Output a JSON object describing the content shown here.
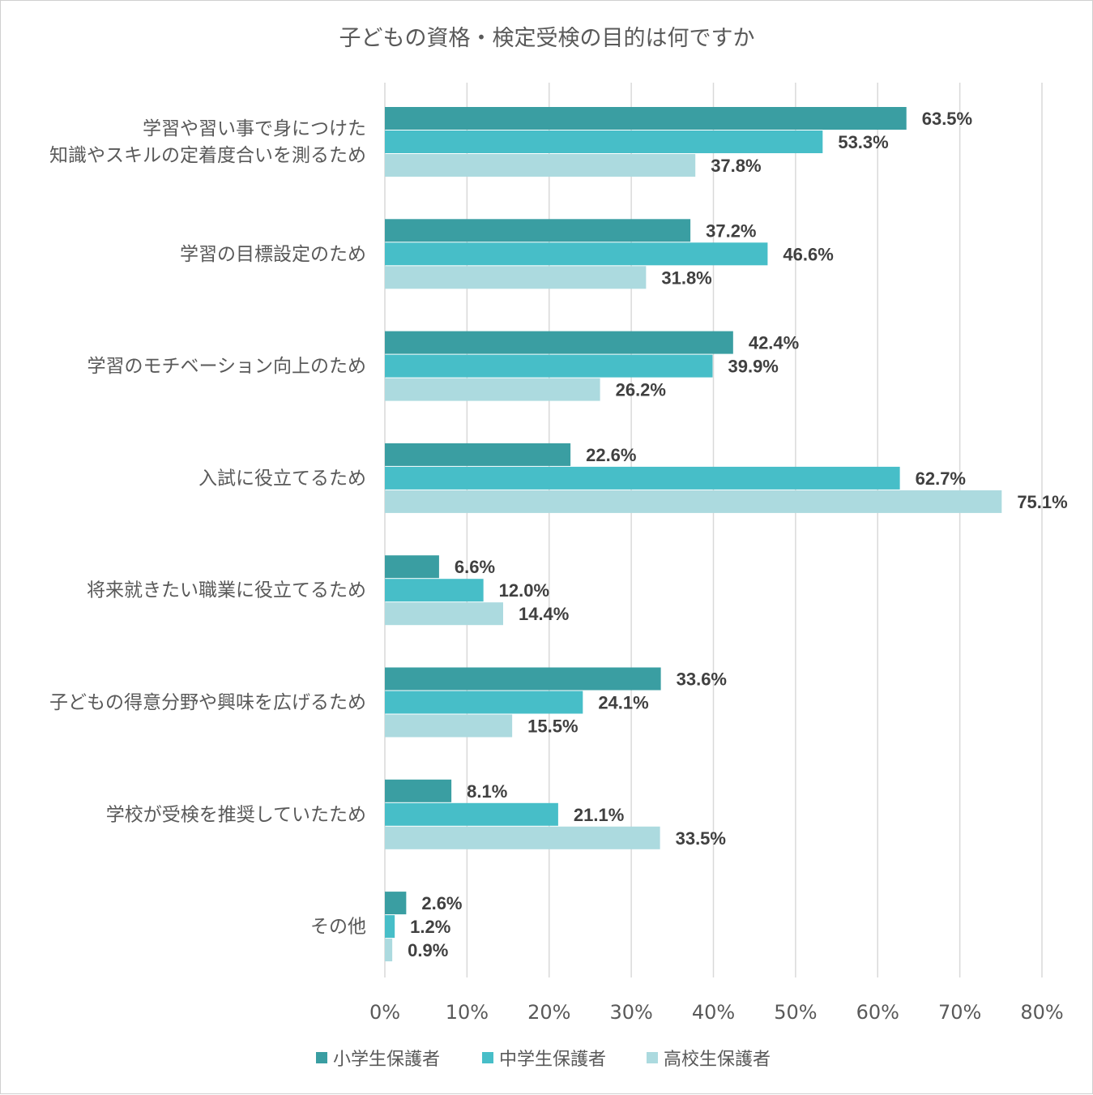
{
  "chart_data": {
    "type": "bar",
    "orientation": "horizontal",
    "title": "子どもの資格・検定受検の目的は何ですか",
    "categories": [
      [
        "学習や習い事で身につけた",
        "知識やスキルの定着度合いを測るため"
      ],
      [
        "学習の目標設定のため"
      ],
      [
        "学習のモチベーション向上のため"
      ],
      [
        "入試に役立てるため"
      ],
      [
        "将来就きたい職業に役立てるため"
      ],
      [
        "子どもの得意分野や興味を広げるため"
      ],
      [
        "学校が受検を推奨していたため"
      ],
      [
        "その他"
      ]
    ],
    "series": [
      {
        "name": "小学生保護者",
        "color": "#3a9ea2",
        "values": [
          63.5,
          37.2,
          42.4,
          22.6,
          6.6,
          33.6,
          8.1,
          2.6
        ]
      },
      {
        "name": "中学生保護者",
        "color": "#47bec8",
        "values": [
          53.3,
          46.6,
          39.9,
          62.7,
          12.0,
          24.1,
          21.1,
          1.2
        ]
      },
      {
        "name": "高校生保護者",
        "color": "#acdadf",
        "values": [
          37.8,
          31.8,
          26.2,
          75.1,
          14.4,
          15.5,
          33.5,
          0.9
        ]
      }
    ],
    "xlim": [
      0,
      80
    ],
    "xticks": [
      0,
      10,
      20,
      30,
      40,
      50,
      60,
      70,
      80
    ],
    "tick_suffix": "%",
    "value_suffix": "%",
    "grid": true,
    "legend_position": "bottom",
    "gridline_color": "#d9d9d9",
    "text_color": "#595959",
    "label_color": "#404040"
  }
}
